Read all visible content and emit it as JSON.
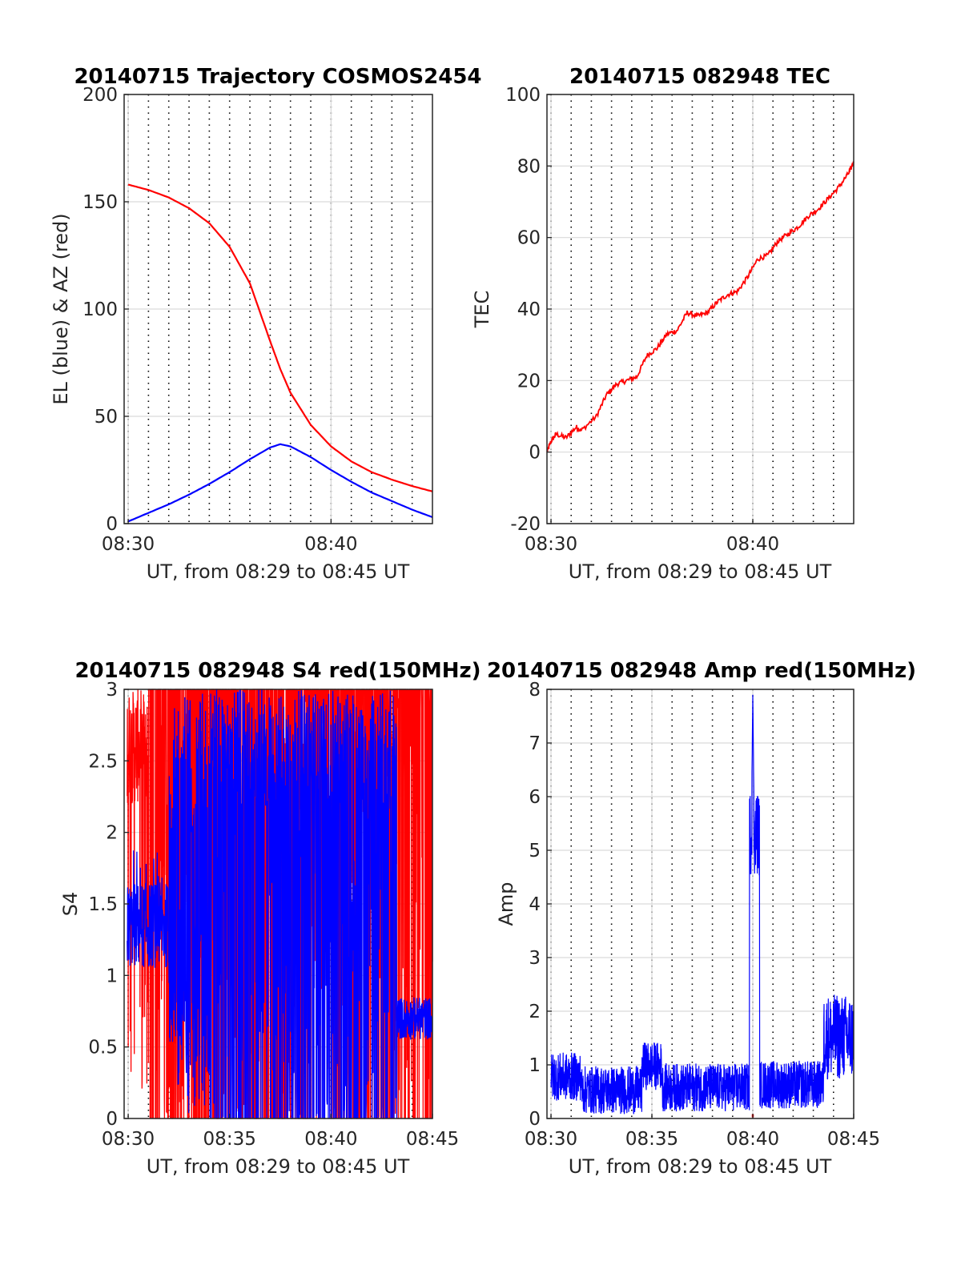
{
  "chart_data": [
    {
      "type": "line",
      "title": "20140715 Trajectory COSMOS2454",
      "xlabel": "UT, from 08:29 to 08:45 UT",
      "ylabel": "EL (blue) & AZ (red)",
      "x_ticks": [
        "08:30",
        "08:40"
      ],
      "y_ticks": [
        "0",
        "50",
        "100",
        "150",
        "200"
      ],
      "xlim": [
        "08:29:48",
        "08:45:00"
      ],
      "ylim": [
        0,
        200
      ],
      "grid": true,
      "x": [
        "08:30:00",
        "08:31:00",
        "08:32:00",
        "08:33:00",
        "08:34:00",
        "08:35:00",
        "08:36:00",
        "08:37:00",
        "08:37:30",
        "08:38:00",
        "08:39:00",
        "08:40:00",
        "08:41:00",
        "08:42:00",
        "08:43:00",
        "08:44:00",
        "08:45:00"
      ],
      "series": [
        {
          "color": "#ff0000",
          "values": [
            158,
            155.5,
            152,
            147,
            140,
            129,
            112,
            85,
            72,
            61,
            46,
            36,
            29,
            24,
            20.5,
            17.5,
            15
          ]
        },
        {
          "color": "#0000ff",
          "values": [
            1,
            5,
            9,
            13.5,
            18.5,
            24,
            30,
            35.5,
            37,
            36,
            31,
            25,
            19.5,
            14.5,
            10.5,
            6.5,
            3
          ]
        }
      ]
    },
    {
      "type": "line",
      "title": "20140715 082948 TEC",
      "xlabel": "UT, from 08:29 to 08:45 UT",
      "ylabel": "TEC",
      "x_ticks": [
        "08:30",
        "08:40"
      ],
      "y_ticks": [
        "-20",
        "0",
        "20",
        "40",
        "60",
        "80",
        "100"
      ],
      "xlim": [
        "08:29:48",
        "08:45:00"
      ],
      "ylim": [
        -20,
        100
      ],
      "grid": true,
      "x": [
        "08:29:48",
        "08:30:00",
        "08:30:15",
        "08:30:45",
        "08:31:15",
        "08:31:30",
        "08:32:15",
        "08:32:45",
        "08:33:15",
        "08:33:45",
        "08:34:15",
        "08:34:45",
        "08:35:15",
        "08:35:45",
        "08:36:15",
        "08:36:45",
        "08:37:15",
        "08:37:45",
        "08:38:15",
        "08:38:45",
        "08:39:15",
        "08:39:45",
        "08:40:15",
        "08:40:45",
        "08:41:15",
        "08:41:45",
        "08:42:15",
        "08:42:45",
        "08:43:15",
        "08:43:45",
        "08:44:15",
        "08:44:45",
        "08:45:00"
      ],
      "series": [
        {
          "color": "#ff0000",
          "values": [
            0,
            3,
            5,
            4,
            7,
            6,
            10,
            16,
            19,
            20,
            21,
            27,
            29,
            33,
            34,
            39,
            38,
            39,
            42,
            44,
            45,
            49,
            54,
            55,
            59,
            61,
            63,
            66,
            68,
            71,
            74,
            78,
            81
          ]
        }
      ]
    },
    {
      "type": "line",
      "title": "20140715 082948 S4 red(150MHz)",
      "xlabel": "UT, from 08:29 to 08:45 UT",
      "ylabel": "S4",
      "x_ticks": [
        "08:30",
        "08:35",
        "08:40",
        "08:45"
      ],
      "y_ticks": [
        "0",
        "0.5",
        "1",
        "1.5",
        "2",
        "2.5",
        "3"
      ],
      "xlim": [
        "08:29:48",
        "08:45:00"
      ],
      "ylim": [
        0,
        3
      ],
      "grid": true,
      "x_range": [
        "08:29:57",
        "08:45:00"
      ],
      "series": [
        {
          "color": "#ff0000",
          "pattern": "saturated noise 0 to 3"
        },
        {
          "color": "#0000ff",
          "pattern": "noise 1.0-1.7 early, 0-3 from 08:32 to 08:43, 0.5-0.8 late"
        }
      ]
    },
    {
      "type": "line",
      "title": "20140715 082948 Amp red(150MHz)",
      "xlabel": "UT, from 08:29 to 08:45 UT",
      "ylabel": "Amp",
      "x_ticks": [
        "08:30",
        "08:35",
        "08:40",
        "08:45"
      ],
      "y_ticks": [
        "0",
        "1",
        "2",
        "3",
        "4",
        "5",
        "6",
        "7",
        "8"
      ],
      "xlim": [
        "08:29:48",
        "08:45:00"
      ],
      "ylim": [
        0,
        8
      ],
      "grid": true,
      "x_range": [
        "08:30:00",
        "08:45:00"
      ],
      "series": [
        {
          "color": "#0000ff",
          "pattern": "noise 0-1.5 with bursts; peak 7.9 at 08:40:00; rise to 2.3 after 08:43:30"
        },
        {
          "color": "#ff0000",
          "pattern": "near 0, small blip at 08:40"
        }
      ]
    }
  ]
}
